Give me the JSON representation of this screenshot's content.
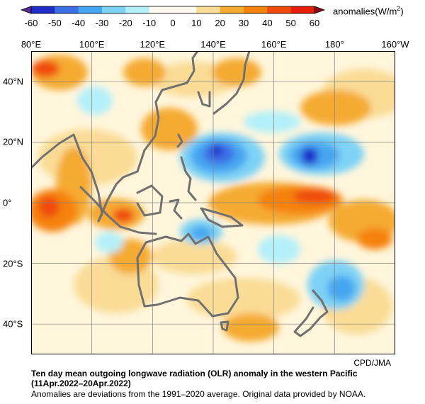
{
  "colorbar": {
    "units_prefix": "anomalies(W/m",
    "units_sup": "2",
    "units_suffix": ")",
    "ticks": [
      "-60",
      "-50",
      "-40",
      "-30",
      "-20",
      "-10",
      "0",
      "10",
      "20",
      "30",
      "40",
      "50",
      "60"
    ],
    "colors": [
      "#1e2dc8",
      "#3c6ee6",
      "#46a5f0",
      "#7dd2f5",
      "#b4f0fa",
      "#fffaf0",
      "#fffaf0",
      "#fadc96",
      "#f5aa32",
      "#f5820a",
      "#f04b0a",
      "#e61e0a"
    ]
  },
  "map": {
    "lon_labels": [
      "80°E",
      "100°E",
      "120°E",
      "140°E",
      "160°E",
      "180°",
      "160°W"
    ],
    "lat_labels": [
      "40°N",
      "20°N",
      "0°",
      "20°S",
      "40°S"
    ],
    "lon_range": [
      80,
      200
    ],
    "lat_range": [
      -50,
      50
    ],
    "grid_color": "#808080",
    "coast_color": "#707070"
  },
  "credit": "CPD/JMA",
  "title_line1": "Ten day mean outgoing longwave radiation (OLR) anomaly in the western Pacific",
  "title_line2": "(11Apr.2022–20Apr.2022)",
  "note": "Anomalies are deviations from the 1991–2020 average. Original data provided by NOAA."
}
